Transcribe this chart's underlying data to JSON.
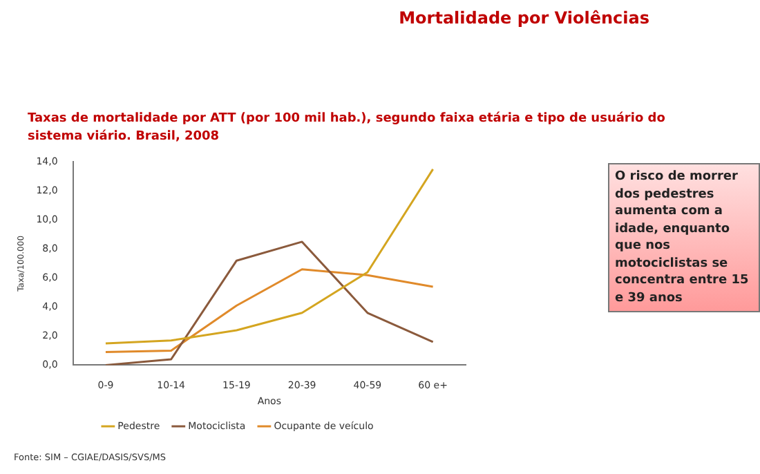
{
  "chart_data": {
    "type": "line",
    "title": "Mortalidade por Violências",
    "subtitle": "Taxas de mortalidade por ATT (por 100 mil hab.), segundo faixa etária e tipo de usuário do sistema viário.  Brasil, 2008",
    "xlabel": "Anos",
    "ylabel": "Taxa/100.000",
    "categories": [
      "0-9",
      "10-14",
      "15-19",
      "20-39",
      "40-59",
      "60 e+"
    ],
    "series": [
      {
        "name": "Pedestre",
        "color": "#d4a520",
        "values": [
          1.5,
          1.7,
          2.4,
          3.6,
          6.4,
          13.5
        ]
      },
      {
        "name": "Motociclista",
        "color": "#8b5a3c",
        "values": [
          0.0,
          0.4,
          7.2,
          8.5,
          3.6,
          1.6
        ]
      },
      {
        "name": "Ocupante de veículo",
        "color": "#e08a2a",
        "values": [
          0.9,
          1.0,
          4.1,
          6.6,
          6.2,
          5.4
        ]
      }
    ],
    "ylim": [
      0,
      14
    ],
    "yticks": [
      {
        "value": 0,
        "label": "0,0"
      },
      {
        "value": 2,
        "label": "2,0"
      },
      {
        "value": 4,
        "label": "4,0"
      },
      {
        "value": 6,
        "label": "6,0"
      },
      {
        "value": 8,
        "label": "8,0"
      },
      {
        "value": 10,
        "label": "10,0"
      },
      {
        "value": 12,
        "label": "12,0"
      },
      {
        "value": 14,
        "label": "14,0"
      }
    ],
    "grid": false,
    "legend": "bottom",
    "marker": "none",
    "line_style": "solid",
    "annotations": [
      "O risco de morrer dos pedestres aumenta com a idade, enquanto que nos motociclistas se concentra entre 15 e 39 anos",
      "Fonte: SIM – CGIAE/DASIS/SVS/MS"
    ]
  }
}
